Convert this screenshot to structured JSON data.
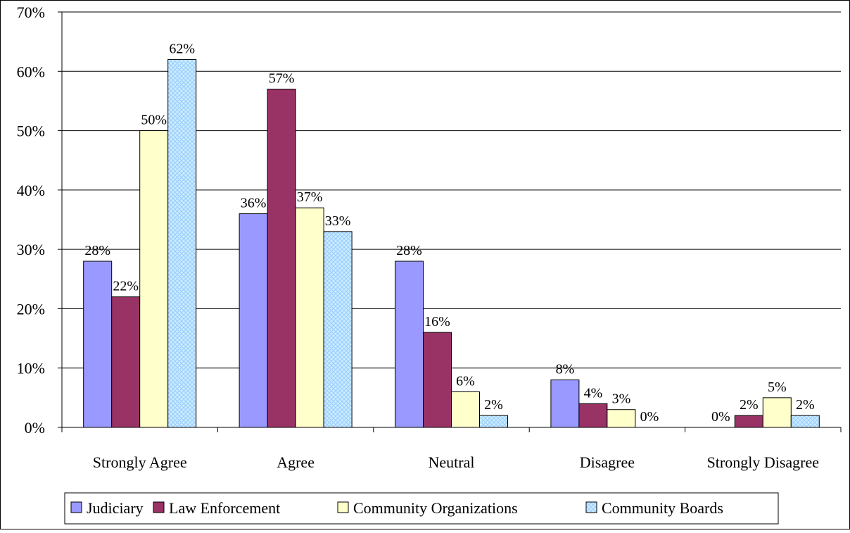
{
  "chart_data": {
    "type": "bar",
    "categories": [
      "Strongly Agree",
      "Agree",
      "Neutral",
      "Disagree",
      "Strongly Disagree"
    ],
    "series": [
      {
        "name": "Judiciary",
        "values": [
          28,
          36,
          28,
          8,
          0
        ],
        "labels": [
          "28%",
          "36%",
          "28%",
          "8%",
          "0%"
        ]
      },
      {
        "name": "Law Enforcement",
        "values": [
          22,
          57,
          16,
          4,
          2
        ],
        "labels": [
          "22%",
          "57%",
          "16%",
          "4%",
          "2%"
        ]
      },
      {
        "name": "Community Organizations",
        "values": [
          50,
          37,
          6,
          3,
          5
        ],
        "labels": [
          "50%",
          "37%",
          "6%",
          "3%",
          "5%"
        ]
      },
      {
        "name": "Community Boards",
        "values": [
          62,
          33,
          2,
          0,
          2
        ],
        "labels": [
          "62%",
          "33%",
          "2%",
          "0%",
          "2%"
        ]
      }
    ],
    "ylim": [
      0,
      70
    ],
    "yticks": [
      0,
      10,
      20,
      30,
      40,
      50,
      60,
      70
    ],
    "ytick_labels": [
      "0%",
      "10%",
      "20%",
      "30%",
      "40%",
      "50%",
      "60%",
      "70%"
    ],
    "grid": true,
    "legend_position": "bottom",
    "colors": {
      "Judiciary": "#9999ff",
      "Law Enforcement": "#993366",
      "Community Organizations": "#ffffcc",
      "Community Boards": "#ccecff",
      "Community Boards pattern": "#99ccff"
    }
  }
}
